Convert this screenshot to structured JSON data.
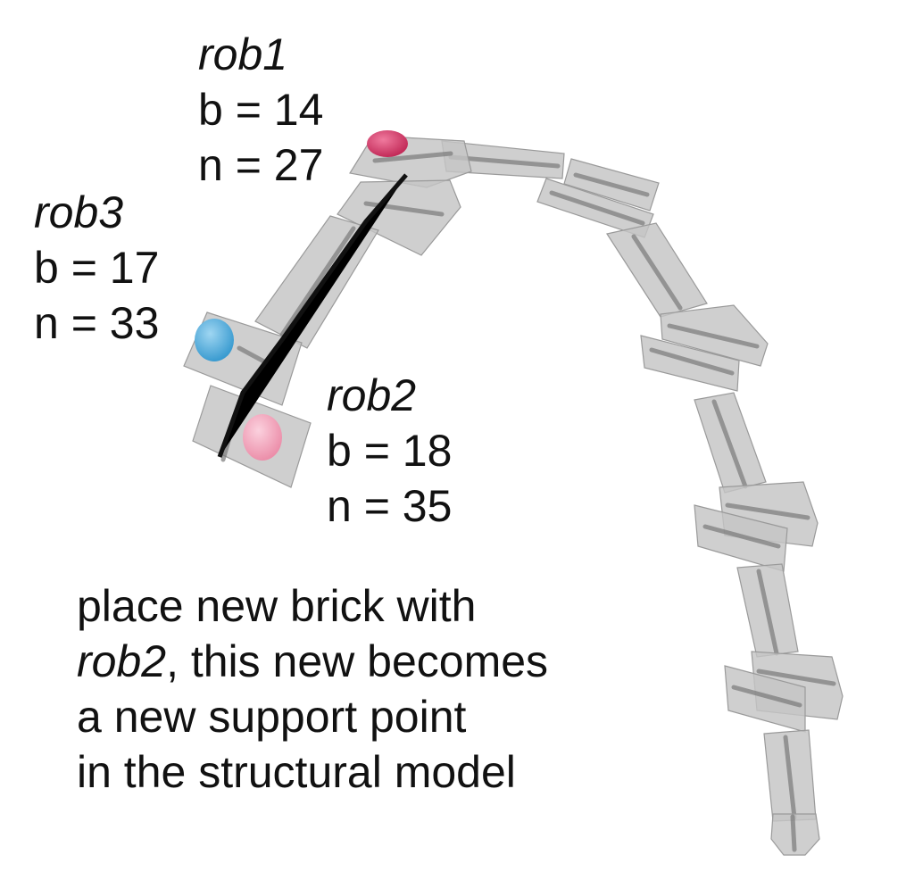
{
  "robots": [
    {
      "id": "rob1",
      "name": "rob1",
      "b": "b = 14",
      "n": "n = 27",
      "color": "#d93a6a"
    },
    {
      "id": "rob3",
      "name": "rob3",
      "b": "b = 17",
      "n": "n = 33",
      "color": "#5bb4e3"
    },
    {
      "id": "rob2",
      "name": "rob2",
      "b": "b = 18",
      "n": "n = 35",
      "color": "#f2a6bc"
    }
  ],
  "caption": {
    "line1": "place new brick with",
    "line2_robot": "rob2",
    "line2_rest": ", this new becomes",
    "line3": "a new support point",
    "line4": "in the structural model"
  },
  "colors": {
    "brick": "#c4c4c4",
    "brick_edge": "#9a9a9a",
    "text": "#111111"
  }
}
